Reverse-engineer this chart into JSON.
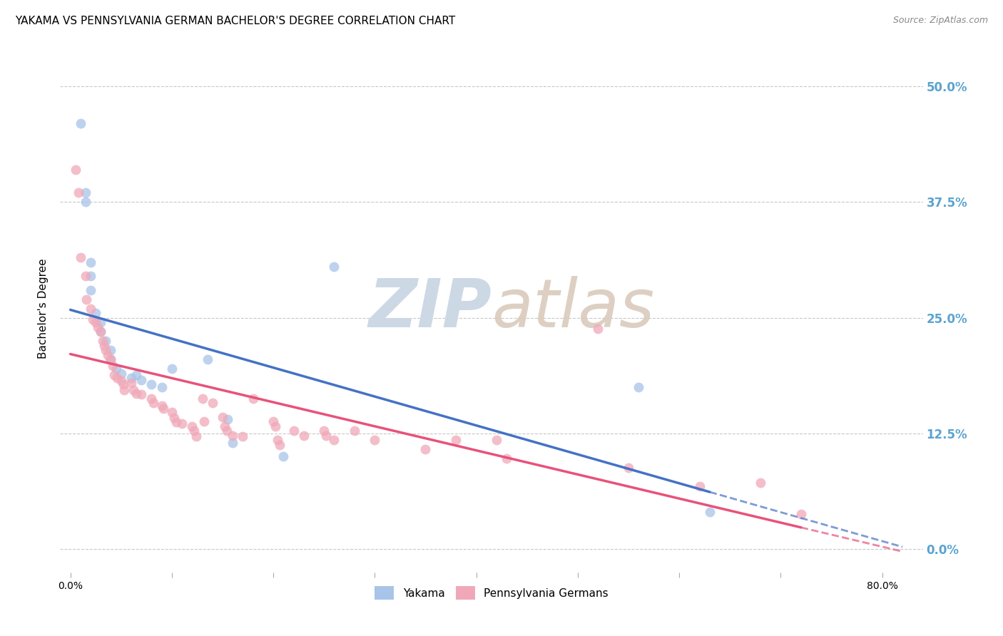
{
  "title": "YAKAMA VS PENNSYLVANIA GERMAN BACHELOR'S DEGREE CORRELATION CHART",
  "source": "Source: ZipAtlas.com",
  "ylabel": "Bachelor's Degree",
  "xlabel_vals": [
    0.0,
    0.1,
    0.2,
    0.3,
    0.4,
    0.5,
    0.6,
    0.7,
    0.8
  ],
  "xlabel_major_vals": [
    0.0,
    0.8
  ],
  "xlabel_major_labels": [
    "0.0%",
    "80.0%"
  ],
  "ylabel_vals": [
    0.0,
    0.125,
    0.25,
    0.375,
    0.5
  ],
  "ylabel_labels": [
    "0.0%",
    "12.5%",
    "25.0%",
    "37.5%",
    "50.0%"
  ],
  "xlim": [
    -0.01,
    0.84
  ],
  "ylim": [
    -0.025,
    0.545
  ],
  "watermark": "ZIPatlas",
  "yakama_points": [
    [
      0.01,
      0.46
    ],
    [
      0.015,
      0.385
    ],
    [
      0.015,
      0.375
    ],
    [
      0.02,
      0.31
    ],
    [
      0.02,
      0.295
    ],
    [
      0.02,
      0.28
    ],
    [
      0.025,
      0.255
    ],
    [
      0.03,
      0.245
    ],
    [
      0.03,
      0.235
    ],
    [
      0.035,
      0.225
    ],
    [
      0.04,
      0.215
    ],
    [
      0.04,
      0.205
    ],
    [
      0.045,
      0.195
    ],
    [
      0.05,
      0.19
    ],
    [
      0.06,
      0.185
    ],
    [
      0.065,
      0.188
    ],
    [
      0.07,
      0.183
    ],
    [
      0.08,
      0.178
    ],
    [
      0.09,
      0.175
    ],
    [
      0.1,
      0.195
    ],
    [
      0.135,
      0.205
    ],
    [
      0.155,
      0.14
    ],
    [
      0.16,
      0.115
    ],
    [
      0.21,
      0.1
    ],
    [
      0.26,
      0.305
    ],
    [
      0.56,
      0.175
    ],
    [
      0.63,
      0.04
    ]
  ],
  "penn_points": [
    [
      0.005,
      0.41
    ],
    [
      0.008,
      0.385
    ],
    [
      0.01,
      0.315
    ],
    [
      0.015,
      0.295
    ],
    [
      0.016,
      0.27
    ],
    [
      0.02,
      0.26
    ],
    [
      0.022,
      0.248
    ],
    [
      0.025,
      0.245
    ],
    [
      0.027,
      0.24
    ],
    [
      0.03,
      0.235
    ],
    [
      0.032,
      0.225
    ],
    [
      0.033,
      0.22
    ],
    [
      0.035,
      0.215
    ],
    [
      0.037,
      0.21
    ],
    [
      0.04,
      0.205
    ],
    [
      0.042,
      0.198
    ],
    [
      0.043,
      0.188
    ],
    [
      0.046,
      0.185
    ],
    [
      0.05,
      0.182
    ],
    [
      0.052,
      0.178
    ],
    [
      0.053,
      0.172
    ],
    [
      0.06,
      0.18
    ],
    [
      0.062,
      0.172
    ],
    [
      0.065,
      0.168
    ],
    [
      0.07,
      0.167
    ],
    [
      0.08,
      0.163
    ],
    [
      0.082,
      0.158
    ],
    [
      0.09,
      0.155
    ],
    [
      0.092,
      0.152
    ],
    [
      0.1,
      0.148
    ],
    [
      0.102,
      0.142
    ],
    [
      0.104,
      0.137
    ],
    [
      0.11,
      0.136
    ],
    [
      0.12,
      0.133
    ],
    [
      0.122,
      0.128
    ],
    [
      0.124,
      0.122
    ],
    [
      0.13,
      0.163
    ],
    [
      0.132,
      0.138
    ],
    [
      0.14,
      0.158
    ],
    [
      0.15,
      0.143
    ],
    [
      0.152,
      0.133
    ],
    [
      0.154,
      0.128
    ],
    [
      0.16,
      0.123
    ],
    [
      0.17,
      0.122
    ],
    [
      0.18,
      0.163
    ],
    [
      0.2,
      0.138
    ],
    [
      0.202,
      0.133
    ],
    [
      0.204,
      0.118
    ],
    [
      0.206,
      0.113
    ],
    [
      0.22,
      0.128
    ],
    [
      0.23,
      0.123
    ],
    [
      0.25,
      0.128
    ],
    [
      0.252,
      0.123
    ],
    [
      0.26,
      0.118
    ],
    [
      0.28,
      0.128
    ],
    [
      0.3,
      0.118
    ],
    [
      0.35,
      0.108
    ],
    [
      0.38,
      0.118
    ],
    [
      0.42,
      0.118
    ],
    [
      0.43,
      0.098
    ],
    [
      0.52,
      0.238
    ],
    [
      0.55,
      0.088
    ],
    [
      0.62,
      0.068
    ],
    [
      0.68,
      0.072
    ],
    [
      0.72,
      0.038
    ]
  ],
  "yakama_line_color": "#4472c4",
  "penn_line_color": "#e8527a",
  "yakama_scatter_color": "#a8c4e8",
  "penn_scatter_color": "#f0a8b8",
  "background_color": "#ffffff",
  "grid_color": "#c8c8c8",
  "right_axis_label_color": "#5ba3d0",
  "title_fontsize": 11,
  "source_fontsize": 9,
  "watermark_color": "#cdd8e5",
  "marker_size": 100,
  "marker_alpha": 0.75
}
